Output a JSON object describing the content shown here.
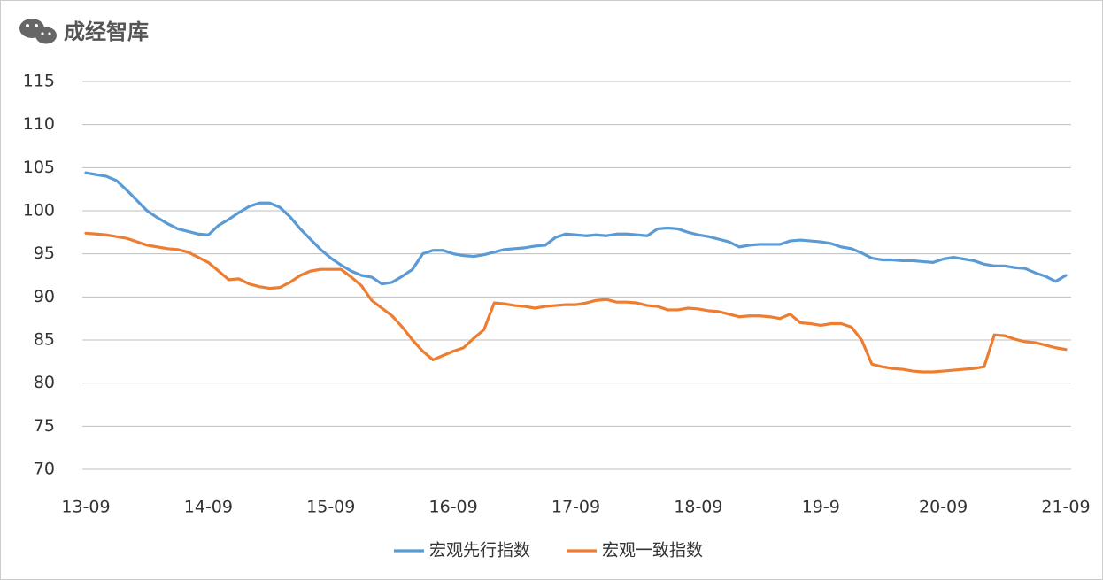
{
  "watermark": "成经智库",
  "chart_data": {
    "type": "line",
    "categories": [
      "13-09",
      null,
      null,
      null,
      null,
      null,
      null,
      null,
      null,
      null,
      null,
      null,
      "14-09",
      null,
      null,
      null,
      null,
      null,
      null,
      null,
      null,
      null,
      null,
      null,
      "15-09",
      null,
      null,
      null,
      null,
      null,
      null,
      null,
      null,
      null,
      null,
      null,
      "16-09",
      null,
      null,
      null,
      null,
      null,
      null,
      null,
      null,
      null,
      null,
      null,
      "17-09",
      null,
      null,
      null,
      null,
      null,
      null,
      null,
      null,
      null,
      null,
      null,
      "18-09",
      null,
      null,
      null,
      null,
      null,
      null,
      null,
      null,
      null,
      null,
      null,
      "19-9",
      null,
      null,
      null,
      null,
      null,
      null,
      null,
      null,
      null,
      null,
      null,
      "20-09",
      null,
      null,
      null,
      null,
      null,
      null,
      null,
      null,
      null,
      null,
      null,
      "21-09"
    ],
    "series": [
      {
        "name": "宏观先行指数",
        "color": "#5b9bd5",
        "values": [
          104.4,
          104.2,
          104.0,
          103.5,
          102.4,
          101.2,
          100.0,
          99.2,
          98.5,
          97.9,
          97.6,
          97.3,
          97.2,
          98.3,
          99.0,
          99.8,
          100.5,
          100.9,
          100.9,
          100.4,
          99.3,
          97.9,
          96.7,
          95.5,
          94.5,
          93.7,
          93.0,
          92.5,
          92.3,
          91.5,
          91.7,
          92.4,
          93.2,
          95.0,
          95.4,
          95.4,
          95.0,
          94.8,
          94.7,
          94.9,
          95.2,
          95.5,
          95.6,
          95.7,
          95.9,
          96.0,
          96.9,
          97.3,
          97.2,
          97.1,
          97.2,
          97.1,
          97.3,
          97.3,
          97.2,
          97.1,
          97.9,
          98.0,
          97.9,
          97.5,
          97.2,
          97.0,
          96.7,
          96.4,
          95.8,
          96.0,
          96.1,
          96.1,
          96.1,
          96.5,
          96.6,
          96.5,
          96.4,
          96.2,
          95.8,
          95.6,
          95.1,
          94.5,
          94.3,
          94.3,
          94.2,
          94.2,
          94.1,
          94.0,
          94.4,
          94.6,
          94.4,
          94.2,
          93.8,
          93.6,
          93.6,
          93.4,
          93.3,
          92.8,
          92.4,
          91.8,
          92.5
        ]
      },
      {
        "name": "宏观一致指数",
        "color": "#ed7d31",
        "values": [
          97.4,
          97.3,
          97.2,
          97.0,
          96.8,
          96.4,
          96.0,
          95.8,
          95.6,
          95.5,
          95.2,
          94.6,
          94.0,
          93.0,
          92.0,
          92.1,
          91.5,
          91.2,
          91.0,
          91.1,
          91.7,
          92.5,
          93.0,
          93.2,
          93.2,
          93.2,
          92.3,
          91.3,
          89.6,
          88.7,
          87.8,
          86.5,
          85.0,
          83.7,
          82.7,
          83.2,
          83.7,
          84.1,
          85.2,
          86.2,
          89.3,
          89.2,
          89.0,
          88.9,
          88.7,
          88.9,
          89.0,
          89.1,
          89.1,
          89.3,
          89.6,
          89.7,
          89.4,
          89.4,
          89.3,
          89.0,
          88.9,
          88.5,
          88.5,
          88.7,
          88.6,
          88.4,
          88.3,
          88.0,
          87.7,
          87.8,
          87.8,
          87.7,
          87.5,
          88.0,
          87.0,
          86.9,
          86.7,
          86.9,
          86.9,
          86.5,
          85.0,
          82.2,
          81.9,
          81.7,
          81.6,
          81.4,
          81.3,
          81.3,
          81.4,
          81.5,
          81.6,
          81.7,
          81.9,
          85.6,
          85.5,
          85.1,
          84.8,
          84.7,
          84.4,
          84.1,
          83.9
        ]
      }
    ],
    "ylim": [
      70,
      115
    ],
    "yticks": [
      70,
      75,
      80,
      85,
      90,
      95,
      100,
      105,
      110,
      115
    ],
    "grid": true,
    "legend": "bottom"
  }
}
